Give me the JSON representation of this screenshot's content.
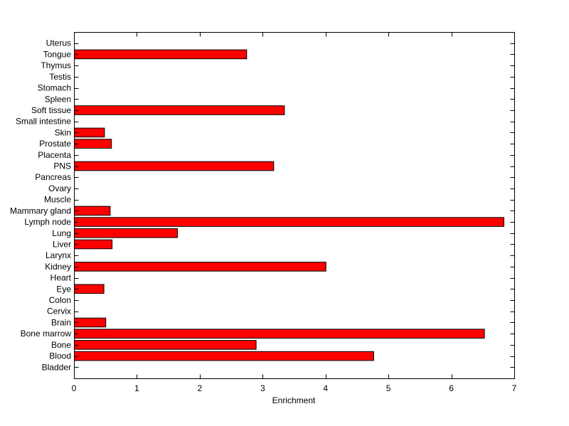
{
  "chart_data": {
    "type": "bar",
    "orientation": "horizontal",
    "title": "",
    "xlabel": "Enrichment",
    "ylabel": "",
    "xlim": [
      0,
      7
    ],
    "x_ticks": [
      "0",
      "1",
      "2",
      "3",
      "4",
      "5",
      "6",
      "7"
    ],
    "grid": false,
    "bar_color": "#ff0000",
    "categories": [
      "Bladder",
      "Blood",
      "Bone",
      "Bone marrow",
      "Brain",
      "Cervix",
      "Colon",
      "Eye",
      "Heart",
      "Kidney",
      "Larynx",
      "Liver",
      "Lung",
      "Lymph node",
      "Mammary gland",
      "Muscle",
      "Ovary",
      "Pancreas",
      "PNS",
      "Placenta",
      "Prostate",
      "Skin",
      "Small intestine",
      "Soft tissue",
      "Spleen",
      "Stomach",
      "Testis",
      "Thymus",
      "Tongue",
      "Uterus"
    ],
    "values": [
      0,
      4.76,
      2.89,
      6.52,
      0.5,
      0,
      0,
      0.47,
      0,
      4.0,
      0,
      0.6,
      1.64,
      6.83,
      0.57,
      0,
      0,
      0,
      3.17,
      0,
      0.59,
      0.48,
      0,
      3.34,
      0,
      0,
      0,
      0,
      2.74,
      0
    ]
  }
}
